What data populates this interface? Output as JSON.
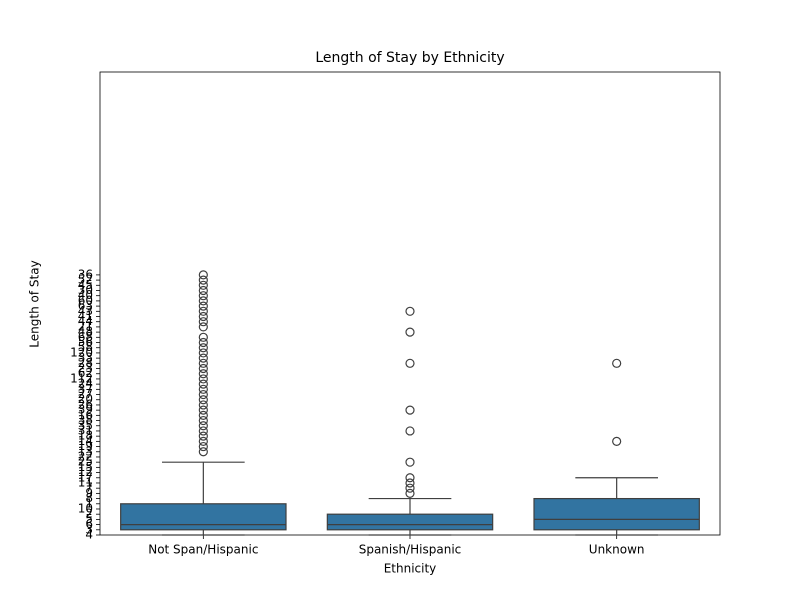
{
  "chart_data": {
    "type": "box",
    "title": "Length of Stay by Ethnicity",
    "x_label": "Ethnicity",
    "y_label": "Length of Stay",
    "categories": [
      "Not Span/Hispanic",
      "Spanish/Hispanic",
      "Unknown"
    ],
    "color": "#3274a1",
    "ylim": [
      0,
      89
    ],
    "yticks": [
      {
        "value": 0,
        "label": "4"
      },
      {
        "value": 1,
        "label": "3"
      },
      {
        "value": 2,
        "label": "6"
      },
      {
        "value": 3,
        "label": "5"
      },
      {
        "value": 4,
        "label": "2"
      },
      {
        "value": 5,
        "label": "10"
      },
      {
        "value": 6,
        "label": "1"
      },
      {
        "value": 7,
        "label": "8"
      },
      {
        "value": 8,
        "label": "9"
      },
      {
        "value": 9,
        "label": "7"
      },
      {
        "value": 10,
        "label": "11"
      },
      {
        "value": 11,
        "label": "17"
      },
      {
        "value": 12,
        "label": "12"
      },
      {
        "value": 13,
        "label": "15"
      },
      {
        "value": 14,
        "label": "25"
      },
      {
        "value": 15,
        "label": "22"
      },
      {
        "value": 16,
        "label": "13"
      },
      {
        "value": 17,
        "label": "19"
      },
      {
        "value": 18,
        "label": "14"
      },
      {
        "value": 19,
        "label": "18"
      },
      {
        "value": 20,
        "label": "31"
      },
      {
        "value": 21,
        "label": "35"
      },
      {
        "value": 22,
        "label": "38"
      },
      {
        "value": 23,
        "label": "16"
      },
      {
        "value": 24,
        "label": "39"
      },
      {
        "value": 25,
        "label": "26"
      },
      {
        "value": 26,
        "label": "20"
      },
      {
        "value": 27,
        "label": "27"
      },
      {
        "value": 28,
        "label": "37"
      },
      {
        "value": 29,
        "label": "24"
      },
      {
        "value": 30,
        "label": "112"
      },
      {
        "value": 31,
        "label": "62"
      },
      {
        "value": 32,
        "label": "23"
      },
      {
        "value": 33,
        "label": "28"
      },
      {
        "value": 34,
        "label": "33"
      },
      {
        "value": 35,
        "label": "120"
      },
      {
        "value": 36,
        "label": "58"
      },
      {
        "value": 37,
        "label": "56"
      },
      {
        "value": 38,
        "label": "68"
      },
      {
        "value": 39,
        "label": "48"
      },
      {
        "value": 40,
        "label": "21"
      },
      {
        "value": 41,
        "label": "44"
      },
      {
        "value": 42,
        "label": "41"
      },
      {
        "value": 43,
        "label": "43"
      },
      {
        "value": 44,
        "label": "63"
      },
      {
        "value": 45,
        "label": "60"
      },
      {
        "value": 46,
        "label": "40"
      },
      {
        "value": 47,
        "label": "30"
      },
      {
        "value": 48,
        "label": "45"
      },
      {
        "value": 49,
        "label": "52"
      },
      {
        "value": 50,
        "label": "36"
      }
    ],
    "boxes": [
      {
        "whislo": 0,
        "q1": 1,
        "median": 2,
        "q3": 6,
        "whishi": 14,
        "fliers": [
          16,
          17,
          18,
          19,
          20,
          21,
          22,
          23,
          24,
          25,
          26,
          27,
          28,
          29,
          30,
          31,
          32,
          33,
          34,
          35,
          36,
          37,
          38,
          40,
          41,
          42,
          43,
          44,
          45,
          46,
          47,
          48,
          49,
          50
        ]
      },
      {
        "whislo": 0,
        "q1": 1,
        "median": 2,
        "q3": 4,
        "whishi": 7,
        "fliers": [
          8,
          9,
          10,
          11,
          14,
          20,
          24,
          33,
          39,
          43
        ]
      },
      {
        "whislo": 0,
        "q1": 1,
        "median": 3,
        "q3": 7,
        "whishi": 11,
        "fliers": [
          18,
          33
        ]
      }
    ]
  }
}
